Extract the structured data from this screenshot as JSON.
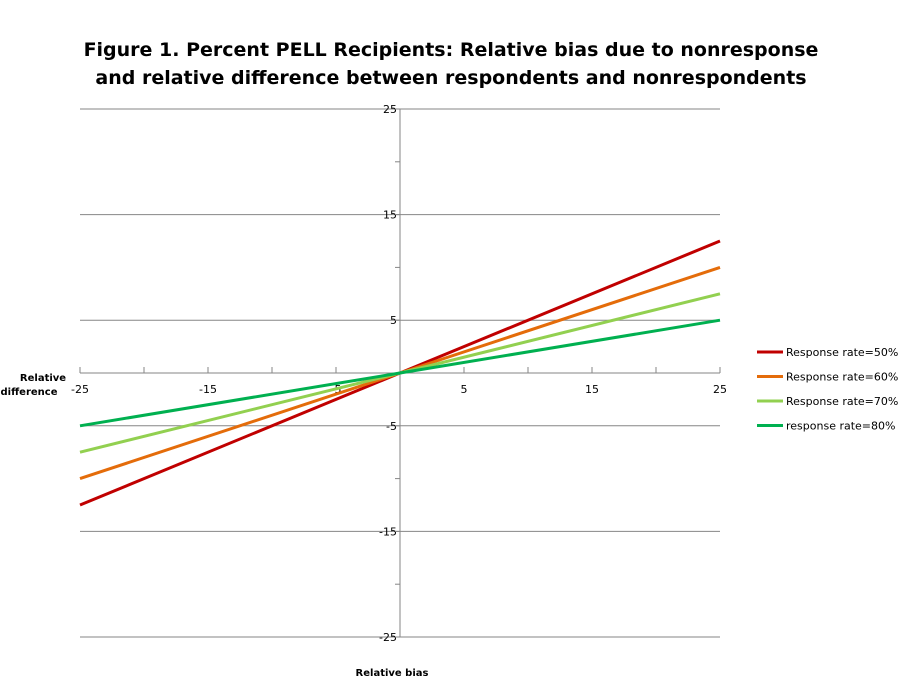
{
  "chart_data": {
    "type": "line",
    "title": [
      "Figure 1.  Percent PELL Recipients:  Relative bias due to nonresponse",
      "and relative difference between respondents and nonrespondents"
    ],
    "xlabel": "Relative bias",
    "ylabel": [
      "Relative",
      "difference"
    ],
    "xlim": [
      -25,
      25
    ],
    "ylim": [
      -25,
      25
    ],
    "x_ticks": [
      -25,
      -15,
      -5,
      5,
      15,
      25
    ],
    "y_ticks": [
      25,
      15,
      5,
      -5,
      -15,
      -25
    ],
    "grid": "horizontal",
    "legend_position": "right",
    "x": [
      -25,
      0,
      25
    ],
    "series": [
      {
        "name": "Response rate=50%",
        "color": "#C00000",
        "values": [
          -12.5,
          0,
          12.5
        ]
      },
      {
        "name": "Response rate=60%",
        "color": "#E46C0A",
        "values": [
          -10,
          0,
          10
        ]
      },
      {
        "name": "Response rate=70%",
        "color": "#92D050",
        "values": [
          -7.5,
          0,
          7.5
        ]
      },
      {
        "name": "response rate=80%",
        "color": "#00B050",
        "values": [
          -5,
          0,
          5
        ]
      }
    ]
  }
}
